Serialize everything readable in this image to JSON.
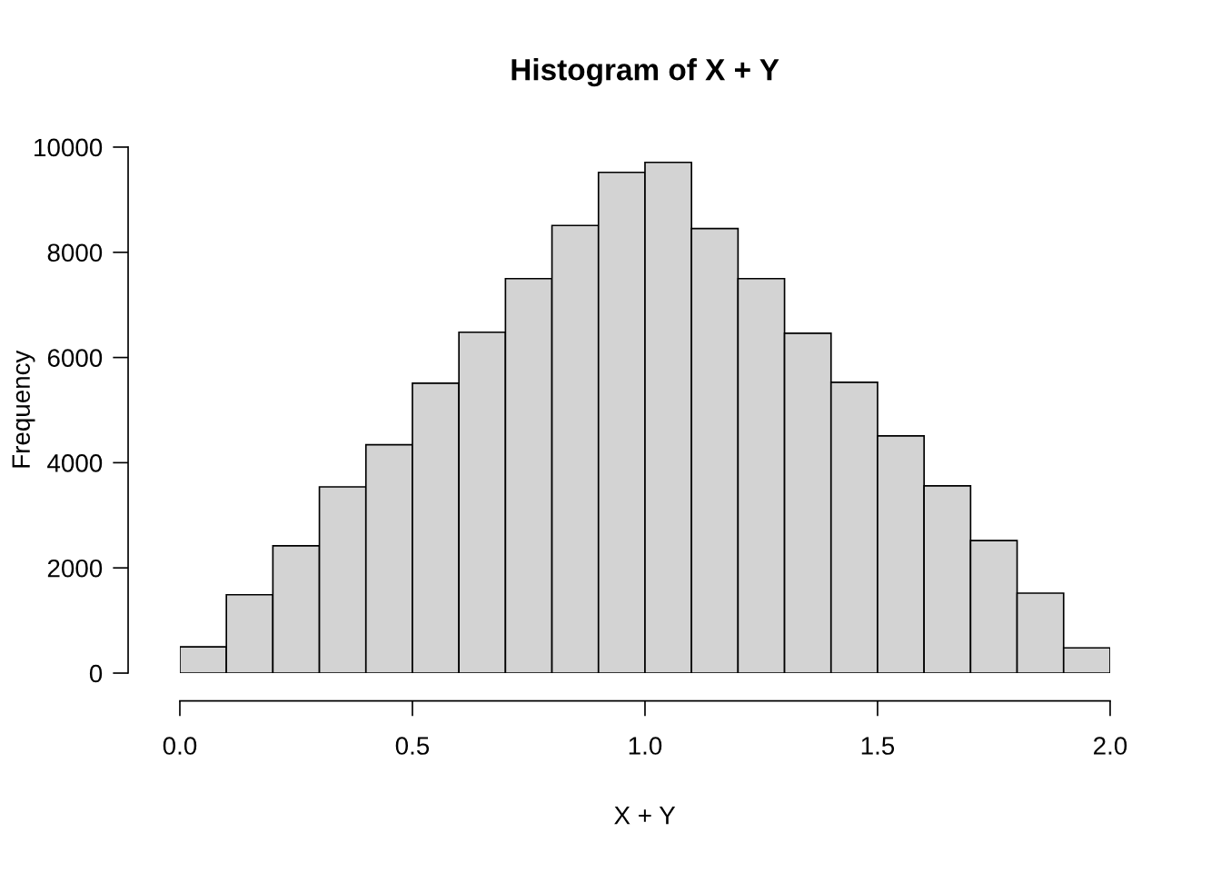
{
  "chart_data": {
    "type": "histogram",
    "title": "Histogram of X + Y",
    "xlabel": "X + Y",
    "ylabel": "Frequency",
    "bins": [
      0.0,
      0.1,
      0.2,
      0.3,
      0.4,
      0.5,
      0.6,
      0.7,
      0.8,
      0.9,
      1.0,
      1.1,
      1.2,
      1.3,
      1.4,
      1.5,
      1.6,
      1.7,
      1.8,
      1.9,
      2.0
    ],
    "values": [
      500,
      1490,
      2420,
      3540,
      4340,
      5510,
      6480,
      7500,
      8510,
      9520,
      9710,
      8450,
      7500,
      6460,
      5530,
      4510,
      3560,
      2520,
      1520,
      480
    ],
    "color": "#d3d3d3",
    "xlim": [
      0,
      2
    ],
    "xticks": [
      {
        "value": 0,
        "label": "0.0"
      },
      {
        "value": 0.5,
        "label": "0.5"
      },
      {
        "value": 1,
        "label": "1.0"
      },
      {
        "value": 1.5,
        "label": "1.5"
      },
      {
        "value": 2,
        "label": "2.0"
      }
    ],
    "ylim": [
      0,
      10000
    ],
    "yticks": [
      0,
      2000,
      4000,
      6000,
      8000,
      10000
    ],
    "grid": false,
    "legend": false
  }
}
